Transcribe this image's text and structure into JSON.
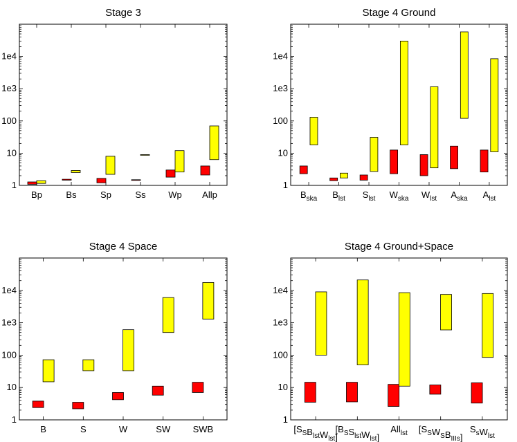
{
  "chart_data": [
    {
      "type": "bar",
      "title": "Stage 3",
      "scale": "log",
      "ylim": [
        1,
        100000
      ],
      "yticks": [
        "1",
        "10",
        "100",
        "1e3",
        "1e4"
      ],
      "categories": [
        {
          "label": "Bp",
          "sub": "",
          "red": [
            1.08,
            1.28
          ],
          "yellow": [
            1.15,
            1.4
          ]
        },
        {
          "label": "Bs",
          "sub": "",
          "red": [
            1.45,
            1.55
          ],
          "yellow": [
            2.5,
            2.9
          ]
        },
        {
          "label": "Sp",
          "sub": "",
          "red": [
            1.2,
            1.65
          ],
          "yellow": [
            2.2,
            8
          ]
        },
        {
          "label": "Ss",
          "sub": "",
          "red": [
            1.5,
            1.5
          ],
          "yellow": [
            9,
            9
          ]
        },
        {
          "label": "Wp",
          "sub": "",
          "red": [
            1.8,
            3.0
          ],
          "yellow": [
            2.6,
            12
          ]
        },
        {
          "label": "Allp",
          "sub": "",
          "red": [
            2.1,
            4.0
          ],
          "yellow": [
            6.3,
            70
          ]
        }
      ]
    },
    {
      "type": "bar",
      "title": "Stage 4 Ground",
      "scale": "log",
      "ylim": [
        1,
        100000
      ],
      "yticks": [
        "1",
        "10",
        "100",
        "1e3",
        "1e4"
      ],
      "categories": [
        {
          "label": "B",
          "sub": "ska",
          "red": [
            2.3,
            4.0
          ],
          "yellow": [
            18,
            130
          ]
        },
        {
          "label": "B",
          "sub": "lst",
          "red": [
            1.4,
            1.7
          ],
          "yellow": [
            1.7,
            2.4
          ]
        },
        {
          "label": "S",
          "sub": "lst",
          "red": [
            1.45,
            2.1
          ],
          "yellow": [
            2.7,
            31
          ]
        },
        {
          "label": "W",
          "sub": "ska",
          "red": [
            2.3,
            12.5
          ],
          "yellow": [
            18,
            30000
          ]
        },
        {
          "label": "W",
          "sub": "lst",
          "red": [
            2.0,
            9.0
          ],
          "yellow": [
            3.5,
            1150
          ]
        },
        {
          "label": "A",
          "sub": "ska",
          "red": [
            3.3,
            16.5
          ],
          "yellow": [
            120,
            58000
          ]
        },
        {
          "label": "A",
          "sub": "lst",
          "red": [
            2.6,
            12.5
          ],
          "yellow": [
            11,
            8500
          ]
        }
      ]
    },
    {
      "type": "bar",
      "title": "Stage 4 Space",
      "scale": "log",
      "ylim": [
        1,
        100000
      ],
      "yticks": [
        "1",
        "10",
        "100",
        "1e3",
        "1e4"
      ],
      "categories": [
        {
          "label": "B",
          "sub": "",
          "red": [
            2.4,
            3.8
          ],
          "yellow": [
            15,
            72
          ]
        },
        {
          "label": "S",
          "sub": "",
          "red": [
            2.2,
            3.5
          ],
          "yellow": [
            33,
            72
          ]
        },
        {
          "label": "W",
          "sub": "",
          "red": [
            4.2,
            7.0
          ],
          "yellow": [
            33,
            610
          ]
        },
        {
          "label": "SW",
          "sub": "",
          "red": [
            5.8,
            11.0
          ],
          "yellow": [
            500,
            6000
          ]
        },
        {
          "label": "SWB",
          "sub": "",
          "red": [
            7.0,
            14.5
          ],
          "yellow": [
            1300,
            17500
          ]
        }
      ]
    },
    {
      "type": "bar",
      "title": "Stage 4 Ground+Space",
      "scale": "log",
      "ylim": [
        1,
        100000
      ],
      "yticks": [
        "1",
        "10",
        "100",
        "1e3",
        "1e4"
      ],
      "categories": [
        {
          "label": "[S_S B_lst W_lst]",
          "sub": "",
          "red": [
            3.5,
            14.5
          ],
          "yellow": [
            100,
            9000
          ]
        },
        {
          "label": "[B_S S_lst W_lst]",
          "sub": "",
          "red": [
            3.6,
            14.5
          ],
          "yellow": [
            50,
            21000
          ]
        },
        {
          "label": "All_lst",
          "sub": "",
          "red": [
            2.6,
            12.5
          ],
          "yellow": [
            11,
            8500
          ]
        },
        {
          "label": "[S_S W_S B_IIIs]",
          "sub": "",
          "red": [
            6.2,
            12.0
          ],
          "yellow": [
            600,
            7500
          ]
        },
        {
          "label": "S_s W_lst",
          "sub": "",
          "red": [
            3.3,
            14.0
          ],
          "yellow": [
            85,
            8000
          ]
        }
      ]
    }
  ],
  "colors": {
    "red": "#ff0000",
    "yellow": "#ffff00",
    "stroke": "#000000"
  }
}
